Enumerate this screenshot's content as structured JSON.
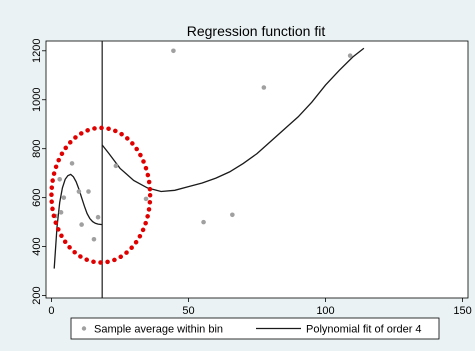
{
  "chart_data": {
    "type": "scatter",
    "title": "Regression function fit",
    "xlabel": "",
    "ylabel": "",
    "xlim": [
      -2,
      152
    ],
    "ylim": [
      190,
      1240
    ],
    "x_ticks": [
      0,
      50,
      100,
      150
    ],
    "y_ticks": [
      200,
      400,
      600,
      800,
      1000,
      1200
    ],
    "x_tick_labels": [
      "0",
      "50",
      "100",
      "150"
    ],
    "y_tick_labels": [
      "200",
      "400",
      "600",
      "800",
      "1000",
      "1200"
    ],
    "grid": false,
    "legend_position": "bottom",
    "cutoff_x": 18.5,
    "series": [
      {
        "name": "Sample average within bin",
        "kind": "scatter",
        "color": "#a0a0a0",
        "points": [
          [
            1.5,
            525
          ],
          [
            3,
            675
          ],
          [
            3.5,
            540
          ],
          [
            4.5,
            600
          ],
          [
            7.5,
            740
          ],
          [
            10,
            625
          ],
          [
            11,
            490
          ],
          [
            13.5,
            625
          ],
          [
            15.5,
            430
          ],
          [
            17,
            520
          ],
          [
            23.5,
            730
          ],
          [
            34.5,
            595
          ],
          [
            44.5,
            1200
          ],
          [
            55.5,
            500
          ],
          [
            66,
            530
          ],
          [
            77.5,
            1050
          ],
          [
            109,
            1180
          ]
        ]
      },
      {
        "name": "Polynomial fit of order 4",
        "kind": "line",
        "color": "#1a1a1a",
        "segments": [
          [
            [
              1,
              310
            ],
            [
              2,
              480
            ],
            [
              3,
              580
            ],
            [
              4,
              640
            ],
            [
              5,
              675
            ],
            [
              6,
              690
            ],
            [
              7,
              695
            ],
            [
              8,
              685
            ],
            [
              9,
              665
            ],
            [
              10,
              635
            ],
            [
              11,
              600
            ],
            [
              12,
              565
            ],
            [
              13,
              535
            ],
            [
              14,
              515
            ],
            [
              15,
              502
            ],
            [
              16,
              495
            ],
            [
              17,
              492
            ],
            [
              18.5,
              490
            ]
          ],
          [
            [
              18.5,
              815
            ],
            [
              21,
              780
            ],
            [
              25,
              720
            ],
            [
              30,
              670
            ],
            [
              35,
              640
            ],
            [
              40,
              625
            ],
            [
              45,
              630
            ],
            [
              50,
              645
            ],
            [
              55,
              660
            ],
            [
              60,
              680
            ],
            [
              65,
              705
            ],
            [
              70,
              740
            ],
            [
              75,
              780
            ],
            [
              80,
              830
            ],
            [
              85,
              880
            ],
            [
              90,
              930
            ],
            [
              95,
              990
            ],
            [
              100,
              1060
            ],
            [
              105,
              1120
            ],
            [
              110,
              1175
            ],
            [
              114,
              1210
            ]
          ]
        ]
      }
    ],
    "annotation": {
      "kind": "dotted-ellipse",
      "color": "#e00000",
      "center": [
        18,
        610
      ],
      "rx": 18,
      "ry": 275
    }
  }
}
